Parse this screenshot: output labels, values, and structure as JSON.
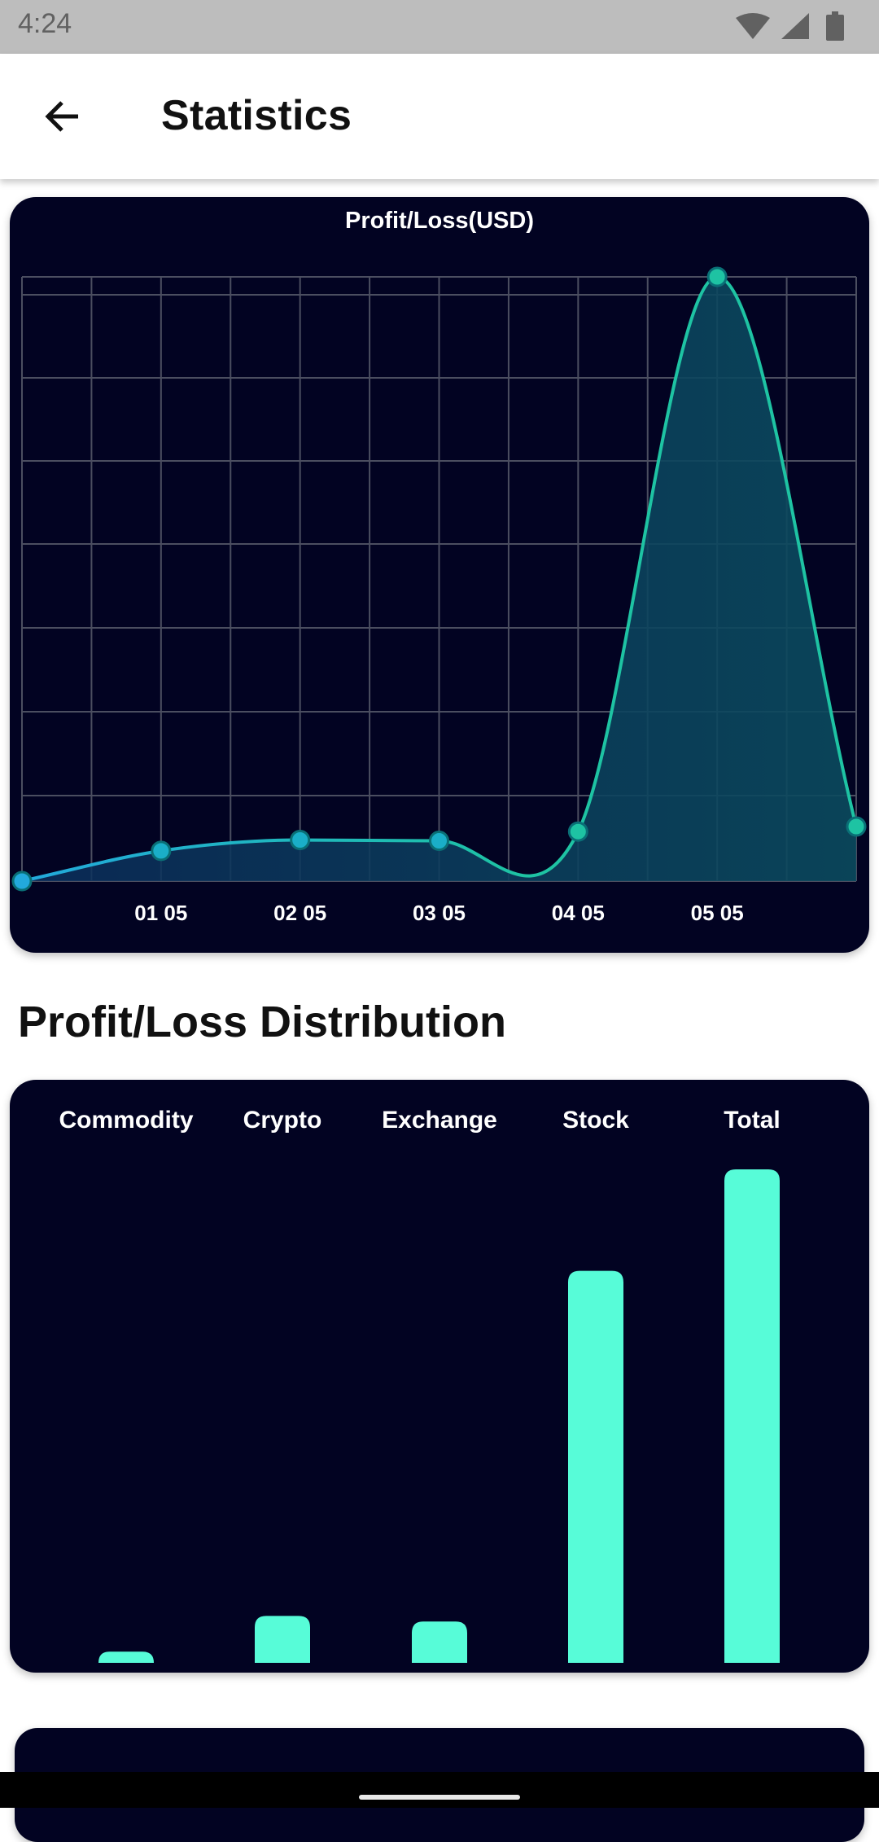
{
  "status_bar": {
    "time": "4:24",
    "icons": [
      "wifi-icon",
      "signal-icon",
      "battery-icon"
    ]
  },
  "app_bar": {
    "title": "Statistics",
    "back_icon": "arrow-left-icon"
  },
  "line_chart": {
    "chart_data": {
      "type": "area",
      "title": "Profit/Loss(USD)",
      "x": [
        0,
        1,
        2,
        3,
        4,
        5,
        6
      ],
      "tick_labels": [
        "",
        "01 05",
        "02 05",
        "03 05",
        "04 05",
        "05 05",
        ""
      ],
      "values": [
        0,
        3.6,
        4.9,
        4.8,
        5.9,
        72,
        6.5
      ],
      "ylim": [
        0,
        72
      ],
      "grid": true,
      "line_color": "#1ec3a3",
      "start_color": "#22a9dc",
      "fill_color": "#0b4b5e"
    }
  },
  "distribution": {
    "title": "Profit/Loss Distribution",
    "chart_data": {
      "type": "bar",
      "categories": [
        "Commodity",
        "Crypto",
        "Exchange",
        "Stock",
        "Total"
      ],
      "values": [
        1.6,
        6.7,
        5.9,
        56,
        70.5
      ],
      "ylim": [
        0,
        70.5
      ],
      "bar_color": "#57fcd8"
    }
  },
  "colors": {
    "card_background": "#020322",
    "grid_line": "#4b4e60",
    "status_bar": "#bdbdbd"
  }
}
